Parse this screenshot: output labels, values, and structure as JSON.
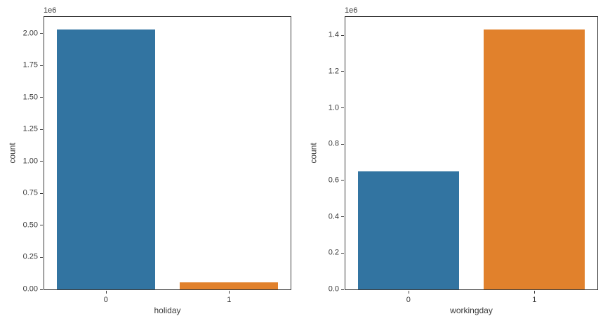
{
  "figure": {
    "background_color": "#ffffff",
    "text_color": "#3a3a3a",
    "spine_color": "#3b3b3b"
  },
  "chart_data": [
    {
      "type": "bar",
      "title": "",
      "xlabel": "holiday",
      "ylabel": "count",
      "offset_text": "1e6",
      "categories": [
        "0",
        "1"
      ],
      "values": [
        2030000,
        57000
      ],
      "bar_colors": [
        "#3274a1",
        "#e1812c"
      ],
      "ylim": [
        0,
        2131500
      ],
      "yticks": [
        0,
        250000,
        500000,
        750000,
        1000000,
        1250000,
        1500000,
        1750000,
        2000000
      ],
      "ytick_labels": [
        "0.00",
        "0.25",
        "0.50",
        "0.75",
        "1.00",
        "1.25",
        "1.50",
        "1.75",
        "2.00"
      ],
      "grid": false,
      "legend": null
    },
    {
      "type": "bar",
      "title": "",
      "xlabel": "workingday",
      "ylabel": "count",
      "offset_text": "1e6",
      "categories": [
        "0",
        "1"
      ],
      "values": [
        650000,
        1430000
      ],
      "bar_colors": [
        "#3274a1",
        "#e1812c"
      ],
      "ylim": [
        0,
        1501500
      ],
      "yticks": [
        0,
        200000,
        400000,
        600000,
        800000,
        1000000,
        1200000,
        1400000
      ],
      "ytick_labels": [
        "0.0",
        "0.2",
        "0.4",
        "0.6",
        "0.8",
        "1.0",
        "1.2",
        "1.4"
      ],
      "grid": false,
      "legend": null
    }
  ]
}
